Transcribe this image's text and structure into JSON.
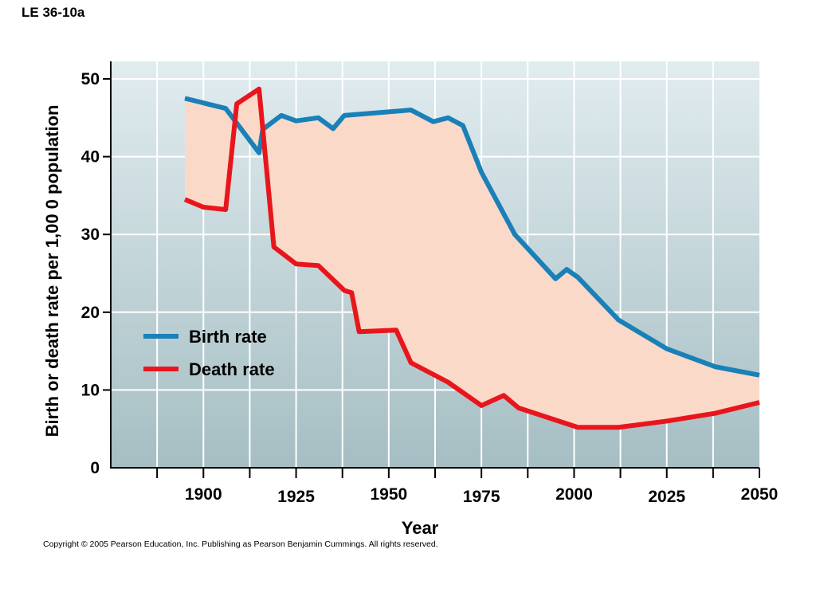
{
  "figure_label": "LE 36-10a",
  "copyright": "Copyright ©  2005 Pearson Education, Inc. Publishing as Pearson Benjamin Cummings. All rights reserved.",
  "chart_data": {
    "type": "line",
    "title": "",
    "xlabel": "Year",
    "ylabel": "Birth or death rate per 1,00 0 population",
    "xlim": [
      1875,
      2050
    ],
    "ylim": [
      0,
      50
    ],
    "x_ticks": [
      1900,
      1925,
      1950,
      1975,
      2000,
      2025,
      2050
    ],
    "y_ticks": [
      0,
      10,
      20,
      30,
      40,
      50
    ],
    "grid": true,
    "legend_position": "lower-left",
    "fill_between_series": true,
    "colors": {
      "birth": "#1a80b8",
      "death": "#e8161c",
      "fill": "#fbd9c9",
      "background_top": "#e1ecef",
      "background_bottom": "#a5bec3"
    },
    "series": [
      {
        "name": "Birth rate",
        "points": [
          [
            1895,
            47.5
          ],
          [
            1906,
            46.2
          ],
          [
            1915,
            40.5
          ],
          [
            1916,
            43.5
          ],
          [
            1921,
            45.3
          ],
          [
            1925,
            44.6
          ],
          [
            1931,
            45.0
          ],
          [
            1935,
            43.6
          ],
          [
            1938,
            45.3
          ],
          [
            1956,
            46.0
          ],
          [
            1962,
            44.5
          ],
          [
            1966,
            45.0
          ],
          [
            1970,
            44.0
          ],
          [
            1975,
            38.0
          ],
          [
            1984,
            30.0
          ],
          [
            1995,
            24.3
          ],
          [
            1998,
            25.5
          ],
          [
            2001,
            24.5
          ],
          [
            2012,
            19.0
          ],
          [
            2025,
            15.3
          ],
          [
            2038,
            13.0
          ],
          [
            2050,
            11.9
          ]
        ]
      },
      {
        "name": "Death rate",
        "points": [
          [
            1895,
            34.5
          ],
          [
            1900,
            33.5
          ],
          [
            1906,
            33.2
          ],
          [
            1909,
            46.8
          ],
          [
            1915,
            48.7
          ],
          [
            1919,
            28.4
          ],
          [
            1925,
            26.2
          ],
          [
            1931,
            26.0
          ],
          [
            1938,
            22.8
          ],
          [
            1940,
            22.5
          ],
          [
            1942,
            17.5
          ],
          [
            1952,
            17.7
          ],
          [
            1956,
            13.5
          ],
          [
            1966,
            11.0
          ],
          [
            1975,
            8.0
          ],
          [
            1981,
            9.3
          ],
          [
            1985,
            7.7
          ],
          [
            2001,
            5.2
          ],
          [
            2012,
            5.2
          ],
          [
            2025,
            6.0
          ],
          [
            2038,
            7.0
          ],
          [
            2050,
            8.4
          ]
        ]
      }
    ]
  }
}
